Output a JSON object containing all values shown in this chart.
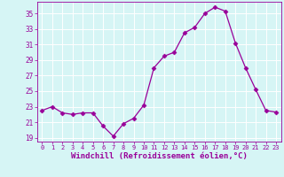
{
  "x": [
    0,
    1,
    2,
    3,
    4,
    5,
    6,
    7,
    8,
    9,
    10,
    11,
    12,
    13,
    14,
    15,
    16,
    17,
    18,
    19,
    20,
    21,
    22,
    23
  ],
  "y": [
    22.5,
    23.0,
    22.2,
    22.0,
    22.2,
    22.2,
    20.5,
    19.2,
    20.8,
    21.5,
    23.2,
    28.0,
    29.5,
    30.0,
    32.5,
    33.2,
    35.0,
    35.8,
    35.3,
    31.2,
    28.0,
    25.2,
    22.5,
    22.3
  ],
  "line_color": "#990099",
  "marker": "D",
  "markersize": 2.5,
  "linewidth": 0.9,
  "bg_color": "#d6f5f5",
  "grid_color": "#ffffff",
  "tick_color": "#990099",
  "xlabel": "Windchill (Refroidissement éolien,°C)",
  "xlabel_fontsize": 6.5,
  "ytick_labels": [
    "19",
    "21",
    "23",
    "25",
    "27",
    "29",
    "31",
    "33",
    "35"
  ],
  "yticks": [
    19,
    21,
    23,
    25,
    27,
    29,
    31,
    33,
    35
  ],
  "xticks": [
    0,
    1,
    2,
    3,
    4,
    5,
    6,
    7,
    8,
    9,
    10,
    11,
    12,
    13,
    14,
    15,
    16,
    17,
    18,
    19,
    20,
    21,
    22,
    23
  ],
  "ylim": [
    18.5,
    36.5
  ],
  "xlim": [
    -0.5,
    23.5
  ]
}
